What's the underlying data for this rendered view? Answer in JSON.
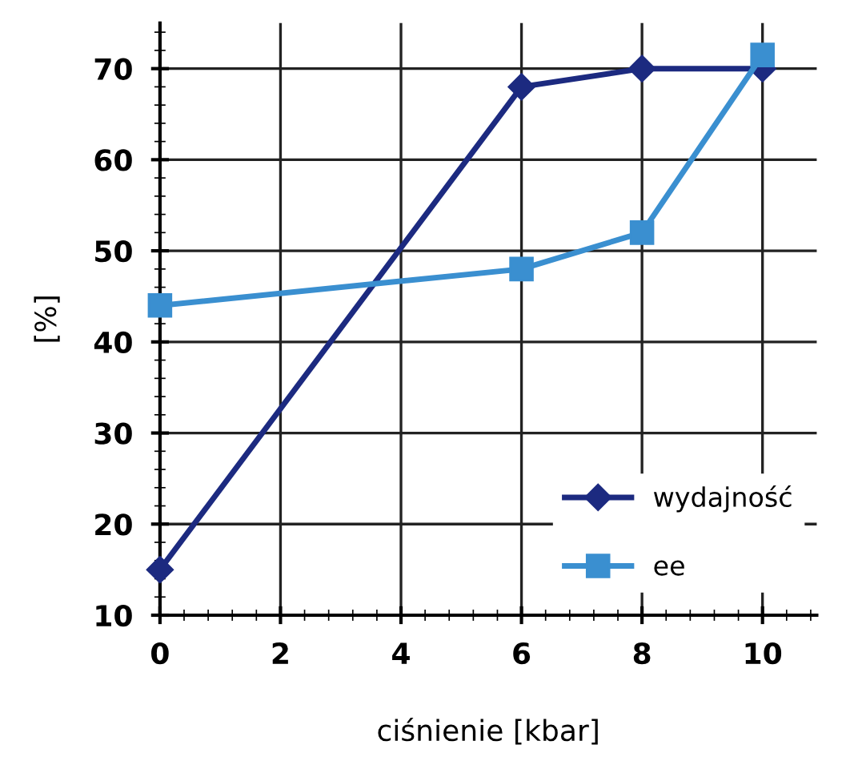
{
  "chart_data": {
    "type": "line",
    "xlabel": "ciśnienie [kbar]",
    "ylabel": "[%]",
    "x": [
      0,
      6,
      8,
      10
    ],
    "series": [
      {
        "name": "wydajność",
        "color": "#1c2a80",
        "marker": "diamond",
        "values": [
          15,
          68,
          70,
          70
        ]
      },
      {
        "name": "ee",
        "color": "#3a8fd0",
        "marker": "square",
        "values": [
          44,
          48,
          52,
          71.5
        ]
      }
    ],
    "xlim": [
      0,
      10.9
    ],
    "ylim": [
      10,
      75
    ],
    "xticks": [
      0,
      2,
      4,
      6,
      8,
      10
    ],
    "yticks": [
      10,
      20,
      30,
      40,
      50,
      60,
      70
    ],
    "grid": true,
    "legend": "bottom right",
    "line_style": "solid"
  }
}
